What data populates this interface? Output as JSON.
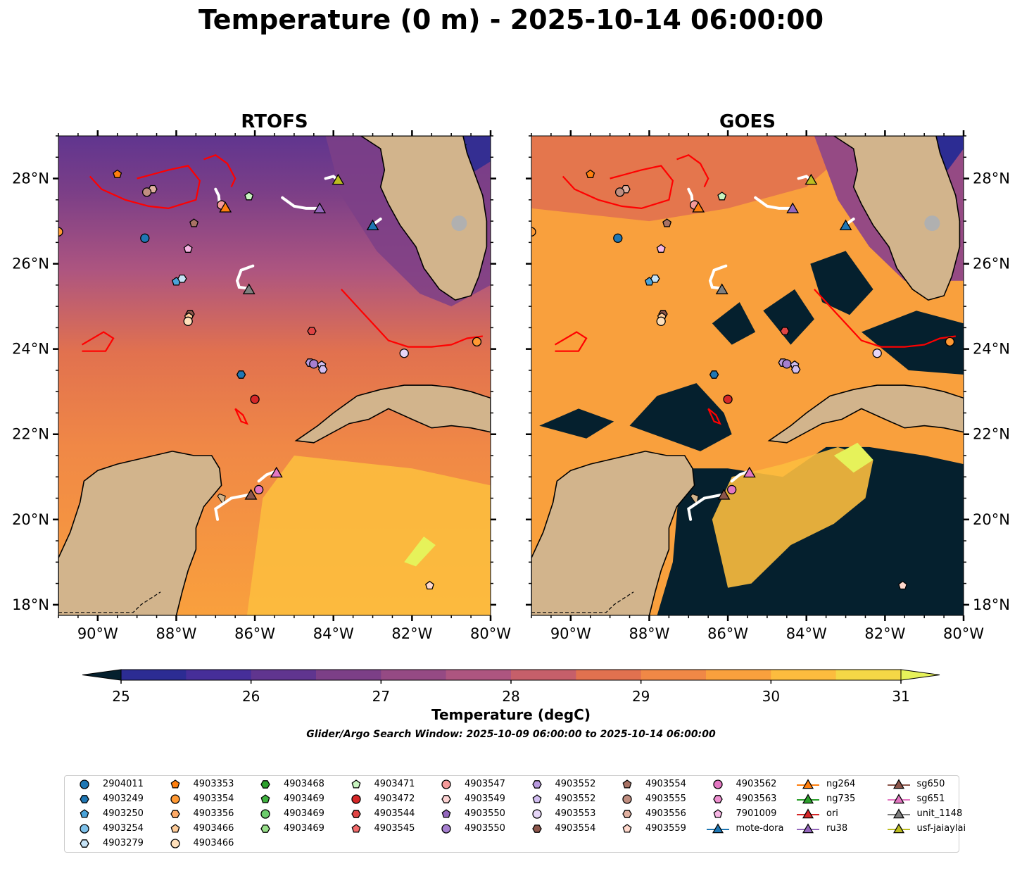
{
  "title": "Temperature (0 m) - 2025-10-14 06:00:00",
  "maps": [
    {
      "title": "RTOFS",
      "id": "rtofs"
    },
    {
      "title": "GOES",
      "id": "goes"
    }
  ],
  "map_extent": {
    "lon_min": -91.0,
    "lon_max": -80.0,
    "lat_min": 17.75,
    "lat_max": 29.0
  },
  "lon_ticks": [
    "90°W",
    "88°W",
    "86°W",
    "84°W",
    "82°W",
    "80°W"
  ],
  "lat_ticks": [
    "18°N",
    "20°N",
    "22°N",
    "24°N",
    "26°N",
    "28°N"
  ],
  "colorbar": {
    "label": "Temperature (degC)",
    "min": 25,
    "max": 31,
    "step": 0.5,
    "ticks": [
      "25",
      "26",
      "27",
      "28",
      "29",
      "30",
      "31"
    ],
    "extend": "both",
    "colors": [
      "#05202e",
      "#08233e",
      "#15296b",
      "#2c2c93",
      "#462e99",
      "#60358f",
      "#7c3f87",
      "#954a84",
      "#ad5580",
      "#c65f6a",
      "#e1714f",
      "#f08846",
      "#f9a03d",
      "#fcbc3e",
      "#f4d746"
    ],
    "over_color": "#e6f25a",
    "under_color": "#05202e"
  },
  "colors": {
    "land": "#d2b48c",
    "front": "#ff0000",
    "track": "#ffffff",
    "coast": "#000000"
  },
  "search_window": "Glider/Argo Search Window: 2025-10-09 06:00:00 to 2025-10-14 06:00:00",
  "legend": [
    {
      "label": "2904011",
      "marker": "circle",
      "color": "#1f77b4"
    },
    {
      "label": "4903249",
      "marker": "hexagon",
      "color": "#1f77b4"
    },
    {
      "label": "4903250",
      "marker": "pentagon",
      "color": "#4aa3d9"
    },
    {
      "label": "4903254",
      "marker": "circle",
      "color": "#7ec1ea"
    },
    {
      "label": "4903279",
      "marker": "hexagon",
      "color": "#c6e3f7"
    },
    {
      "label": "4903353",
      "marker": "pentagon",
      "color": "#ff7f0e"
    },
    {
      "label": "4903354",
      "marker": "circle",
      "color": "#ff9933"
    },
    {
      "label": "4903356",
      "marker": "hexagon",
      "color": "#ffaa66"
    },
    {
      "label": "4903466",
      "marker": "pentagon",
      "color": "#ffcc99"
    },
    {
      "label": "4903466",
      "marker": "circle",
      "color": "#ffe0bb"
    },
    {
      "label": "4903468",
      "marker": "hexagon",
      "color": "#2ca02c"
    },
    {
      "label": "4903469",
      "marker": "pentagon",
      "color": "#3fb23f"
    },
    {
      "label": "4903469",
      "marker": "circle",
      "color": "#6ccc6c"
    },
    {
      "label": "4903469",
      "marker": "hexagon",
      "color": "#98df8a"
    },
    {
      "label": "4903471",
      "marker": "pentagon",
      "color": "#c8f5c0"
    },
    {
      "label": "4903472",
      "marker": "circle",
      "color": "#d62728"
    },
    {
      "label": "4903544",
      "marker": "hexagon",
      "color": "#e04444"
    },
    {
      "label": "4903545",
      "marker": "pentagon",
      "color": "#f26b6b"
    },
    {
      "label": "4903547",
      "marker": "circle",
      "color": "#f59a9a"
    },
    {
      "label": "4903549",
      "marker": "hexagon",
      "color": "#fcd2d2"
    },
    {
      "label": "4903550",
      "marker": "pentagon",
      "color": "#9467bd"
    },
    {
      "label": "4903550",
      "marker": "circle",
      "color": "#a67fd0"
    },
    {
      "label": "4903552",
      "marker": "hexagon",
      "color": "#b89ade"
    },
    {
      "label": "4903552",
      "marker": "pentagon",
      "color": "#d1bdf0"
    },
    {
      "label": "4903553",
      "marker": "circle",
      "color": "#e6d6f8"
    },
    {
      "label": "4903554",
      "marker": "hexagon",
      "color": "#8c564b"
    },
    {
      "label": "4903554",
      "marker": "pentagon",
      "color": "#a87264"
    },
    {
      "label": "4903555",
      "marker": "circle",
      "color": "#c08e80"
    },
    {
      "label": "4903556",
      "marker": "hexagon",
      "color": "#e0b0a0"
    },
    {
      "label": "4903559",
      "marker": "pentagon",
      "color": "#ffd8cc"
    },
    {
      "label": "4903562",
      "marker": "circle",
      "color": "#e377c2"
    },
    {
      "label": "4903563",
      "marker": "hexagon",
      "color": "#ee8fd0"
    },
    {
      "label": "7901009",
      "marker": "pentagon",
      "color": "#f7b6e4"
    },
    {
      "label": "mote-dora",
      "marker": "triangle-line",
      "color": "#1f77b4"
    },
    {
      "label": "ng264",
      "marker": "triangle-line",
      "color": "#ff7f0e"
    },
    {
      "label": "ng735",
      "marker": "triangle-line",
      "color": "#2ca02c"
    },
    {
      "label": "ori",
      "marker": "triangle-line",
      "color": "#d62728"
    },
    {
      "label": "ru38",
      "marker": "triangle-line",
      "color": "#9467bd"
    },
    {
      "label": "sg650",
      "marker": "triangle-line",
      "color": "#8c564b"
    },
    {
      "label": "sg651",
      "marker": "triangle-line",
      "color": "#e377c2"
    },
    {
      "label": "unit_1148",
      "marker": "triangle-line",
      "color": "#7f7f7f"
    },
    {
      "label": "usf-jaiaylai",
      "marker": "triangle-line",
      "color": "#bcbd22"
    }
  ],
  "platforms": [
    {
      "name": "4903354",
      "marker": "circle",
      "color": "#ff9933",
      "lon": -91.0,
      "lat": 26.75
    },
    {
      "name": "4903353",
      "marker": "pentagon",
      "color": "#ff7f0e",
      "lon": -89.5,
      "lat": 28.1
    },
    {
      "name": "4903556",
      "marker": "hexagon",
      "color": "#e0b0a0",
      "lon": -88.6,
      "lat": 27.75
    },
    {
      "name": "4903555",
      "marker": "circle",
      "color": "#c08e80",
      "lon": -88.75,
      "lat": 27.68
    },
    {
      "name": "4903554",
      "marker": "pentagon",
      "color": "#a87264",
      "lon": -87.55,
      "lat": 26.95
    },
    {
      "name": "2904011",
      "marker": "circle",
      "color": "#1f77b4",
      "lon": -88.8,
      "lat": 26.6
    },
    {
      "name": "7901009",
      "marker": "pentagon",
      "color": "#f7b6e4",
      "lon": -87.7,
      "lat": 26.35
    },
    {
      "name": "4903250",
      "marker": "pentagon",
      "color": "#4aa3d9",
      "lon": -88.0,
      "lat": 25.58
    },
    {
      "name": "4903279",
      "marker": "hexagon",
      "color": "#c6e3f7",
      "lon": -87.85,
      "lat": 25.65
    },
    {
      "name": "4903554",
      "marker": "hexagon",
      "color": "#8c564b",
      "lon": -87.65,
      "lat": 24.82
    },
    {
      "name": "4903466",
      "marker": "pentagon",
      "color": "#ffcc99",
      "lon": -87.68,
      "lat": 24.75
    },
    {
      "name": "4903466",
      "marker": "circle",
      "color": "#ffe0bb",
      "lon": -87.7,
      "lat": 24.65
    },
    {
      "name": "4903471",
      "marker": "pentagon",
      "color": "#c8f5c0",
      "lon": -86.15,
      "lat": 27.58
    },
    {
      "name": "4903547",
      "marker": "circle",
      "color": "#f59a9a",
      "lon": -86.85,
      "lat": 27.38
    },
    {
      "name": "4903249",
      "marker": "hexagon",
      "color": "#1f77b4",
      "lon": -86.35,
      "lat": 23.4
    },
    {
      "name": "4903472",
      "marker": "circle",
      "color": "#d62728",
      "lon": -86.0,
      "lat": 22.82
    },
    {
      "name": "4903544",
      "marker": "hexagon",
      "color": "#e04444",
      "lon": -84.55,
      "lat": 24.42
    },
    {
      "name": "4903552",
      "marker": "hexagon",
      "color": "#b89ade",
      "lon": -84.6,
      "lat": 23.68
    },
    {
      "name": "4903550",
      "marker": "circle",
      "color": "#a67fd0",
      "lon": -84.5,
      "lat": 23.65
    },
    {
      "name": "4903552",
      "marker": "pentagon",
      "color": "#d1bdf0",
      "lon": -84.3,
      "lat": 23.62
    },
    {
      "name": "4903552",
      "marker": "hexagon",
      "color": "#d1bdf0",
      "lon": -84.27,
      "lat": 23.52
    },
    {
      "name": "4903553",
      "marker": "circle",
      "color": "#e6d6f8",
      "lon": -82.2,
      "lat": 23.9
    },
    {
      "name": "4903354",
      "marker": "circle",
      "color": "#ff9933",
      "lon": -80.35,
      "lat": 24.17
    },
    {
      "name": "4903562",
      "marker": "circle",
      "color": "#e377c2",
      "lon": -85.9,
      "lat": 20.7
    },
    {
      "name": "4903559",
      "marker": "pentagon",
      "color": "#ffd8cc",
      "lon": -81.55,
      "lat": 18.45
    }
  ],
  "gliders": [
    {
      "name": "ng264",
      "color": "#ff7f0e",
      "lon": -86.75,
      "lat": 27.32,
      "track": [
        [
          -87.0,
          27.75
        ],
        [
          -86.92,
          27.6
        ],
        [
          -86.9,
          27.4
        ],
        [
          -86.78,
          27.32
        ]
      ]
    },
    {
      "name": "usf-jaiaylai",
      "color": "#bcbd22",
      "lon": -83.88,
      "lat": 27.97,
      "track": [
        [
          -84.2,
          28.0
        ],
        [
          -84.0,
          28.05
        ],
        [
          -83.9,
          27.97
        ]
      ]
    },
    {
      "name": "ru38",
      "color": "#9467bd",
      "lon": -84.35,
      "lat": 27.3,
      "track": [
        [
          -85.3,
          27.55
        ],
        [
          -85.0,
          27.35
        ],
        [
          -84.7,
          27.3
        ],
        [
          -84.38,
          27.3
        ]
      ]
    },
    {
      "name": "mote-dora",
      "color": "#1f77b4",
      "lon": -83.0,
      "lat": 26.9,
      "track": [
        [
          -82.8,
          27.05
        ],
        [
          -82.95,
          26.95
        ]
      ]
    },
    {
      "name": "unit_1148",
      "color": "#7f7f7f",
      "lon": -86.15,
      "lat": 25.4,
      "track": [
        [
          -86.05,
          25.95
        ],
        [
          -86.35,
          25.85
        ],
        [
          -86.45,
          25.6
        ],
        [
          -86.4,
          25.45
        ],
        [
          -86.15,
          25.42
        ]
      ]
    },
    {
      "name": "sg651",
      "color": "#e377c2",
      "lon": -85.45,
      "lat": 21.1,
      "track": [
        [
          -85.9,
          20.9
        ],
        [
          -85.7,
          21.05
        ],
        [
          -85.5,
          21.12
        ]
      ]
    },
    {
      "name": "sg650",
      "color": "#8c564b",
      "lon": -86.1,
      "lat": 20.58,
      "track": [
        [
          -86.95,
          20.0
        ],
        [
          -87.0,
          20.25
        ],
        [
          -86.6,
          20.5
        ],
        [
          -86.15,
          20.58
        ]
      ]
    }
  ],
  "fronts": [
    {
      "map": "both",
      "points": [
        [
          -86.5,
          22.6
        ],
        [
          -86.3,
          22.45
        ],
        [
          -86.2,
          22.25
        ],
        [
          -86.35,
          22.3
        ],
        [
          -86.5,
          22.6
        ]
      ]
    },
    {
      "map": "both",
      "points": [
        [
          -90.4,
          24.1
        ],
        [
          -89.85,
          24.4
        ],
        [
          -89.6,
          24.25
        ],
        [
          -89.8,
          23.95
        ],
        [
          -90.4,
          23.95
        ]
      ]
    },
    {
      "map": "both",
      "points": [
        [
          -83.8,
          25.4
        ],
        [
          -83.3,
          24.9
        ],
        [
          -82.9,
          24.5
        ],
        [
          -82.6,
          24.2
        ],
        [
          -82.1,
          24.05
        ],
        [
          -81.5,
          24.05
        ],
        [
          -81.0,
          24.1
        ],
        [
          -80.6,
          24.25
        ],
        [
          -80.2,
          24.3
        ]
      ]
    },
    {
      "map": "both",
      "points": [
        [
          -90.2,
          28.05
        ],
        [
          -89.9,
          27.75
        ],
        [
          -89.3,
          27.5
        ],
        [
          -88.7,
          27.35
        ],
        [
          -88.2,
          27.3
        ],
        [
          -87.5,
          27.5
        ],
        [
          -87.4,
          27.95
        ],
        [
          -87.7,
          28.3
        ],
        [
          -88.2,
          28.2
        ],
        [
          -88.6,
          28.1
        ],
        [
          -89.0,
          28.0
        ]
      ]
    },
    {
      "map": "both",
      "points": [
        [
          -87.3,
          28.45
        ],
        [
          -87.0,
          28.55
        ],
        [
          -86.7,
          28.35
        ],
        [
          -86.5,
          28.0
        ],
        [
          -86.6,
          27.8
        ]
      ]
    }
  ]
}
